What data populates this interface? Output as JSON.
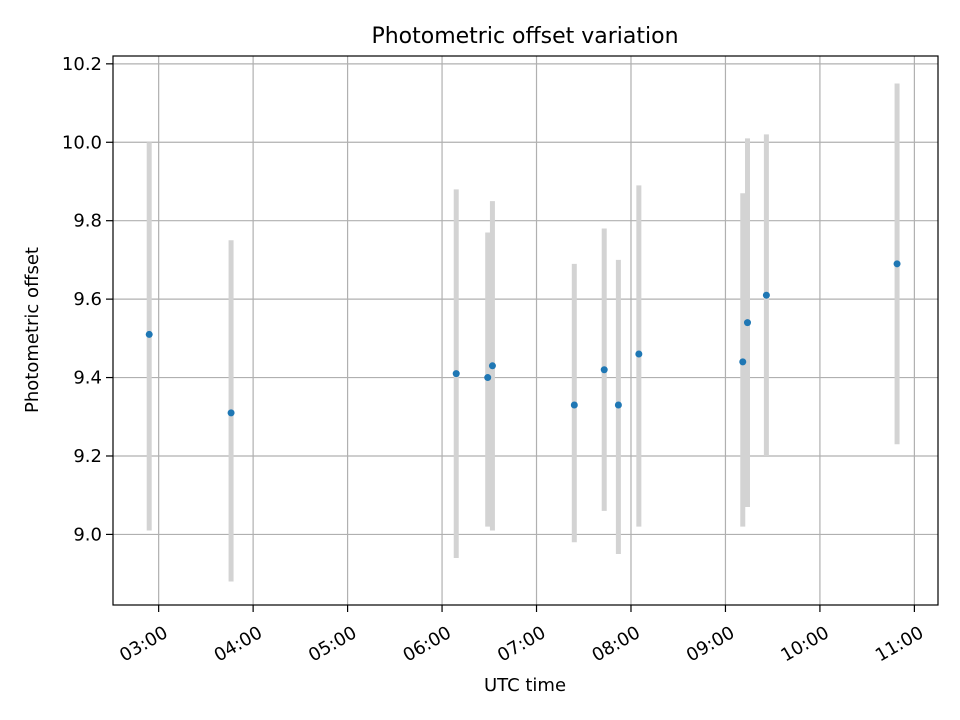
{
  "chart_data": {
    "type": "scatter",
    "title": "Photometric offset variation",
    "xlabel": "UTC time",
    "ylabel": "Photometric offset",
    "x_ticks": [
      "03:00",
      "04:00",
      "05:00",
      "06:00",
      "07:00",
      "08:00",
      "09:00",
      "10:00",
      "11:00"
    ],
    "y_ticks": [
      "9.0",
      "9.2",
      "9.4",
      "9.6",
      "9.8",
      "10.0",
      "10.2"
    ],
    "xlim": [
      "02:31",
      "11:15"
    ],
    "ylim": [
      8.82,
      10.22
    ],
    "grid": true,
    "legend": "none",
    "colors": {
      "points": "#1f77b4",
      "errorbars": "#d3d3d3",
      "grid": "#b0b0b0"
    },
    "points": [
      {
        "time": "02:54",
        "y": 9.51,
        "y_low": 9.01,
        "y_high": 10.0
      },
      {
        "time": "03:46",
        "y": 9.31,
        "y_low": 8.88,
        "y_high": 9.75
      },
      {
        "time": "06:09",
        "y": 9.41,
        "y_low": 8.94,
        "y_high": 9.88
      },
      {
        "time": "06:29",
        "y": 9.4,
        "y_low": 9.02,
        "y_high": 9.77
      },
      {
        "time": "06:32",
        "y": 9.43,
        "y_low": 9.01,
        "y_high": 9.85
      },
      {
        "time": "07:24",
        "y": 9.33,
        "y_low": 8.98,
        "y_high": 9.69
      },
      {
        "time": "07:43",
        "y": 9.42,
        "y_low": 9.06,
        "y_high": 9.78
      },
      {
        "time": "07:52",
        "y": 9.33,
        "y_low": 8.95,
        "y_high": 9.7
      },
      {
        "time": "08:05",
        "y": 9.46,
        "y_low": 9.02,
        "y_high": 9.89
      },
      {
        "time": "09:11",
        "y": 9.44,
        "y_low": 9.02,
        "y_high": 9.87
      },
      {
        "time": "09:14",
        "y": 9.54,
        "y_low": 9.07,
        "y_high": 10.01
      },
      {
        "time": "09:26",
        "y": 9.61,
        "y_low": 9.2,
        "y_high": 10.02
      },
      {
        "time": "10:49",
        "y": 9.69,
        "y_low": 9.23,
        "y_high": 10.15
      }
    ]
  }
}
